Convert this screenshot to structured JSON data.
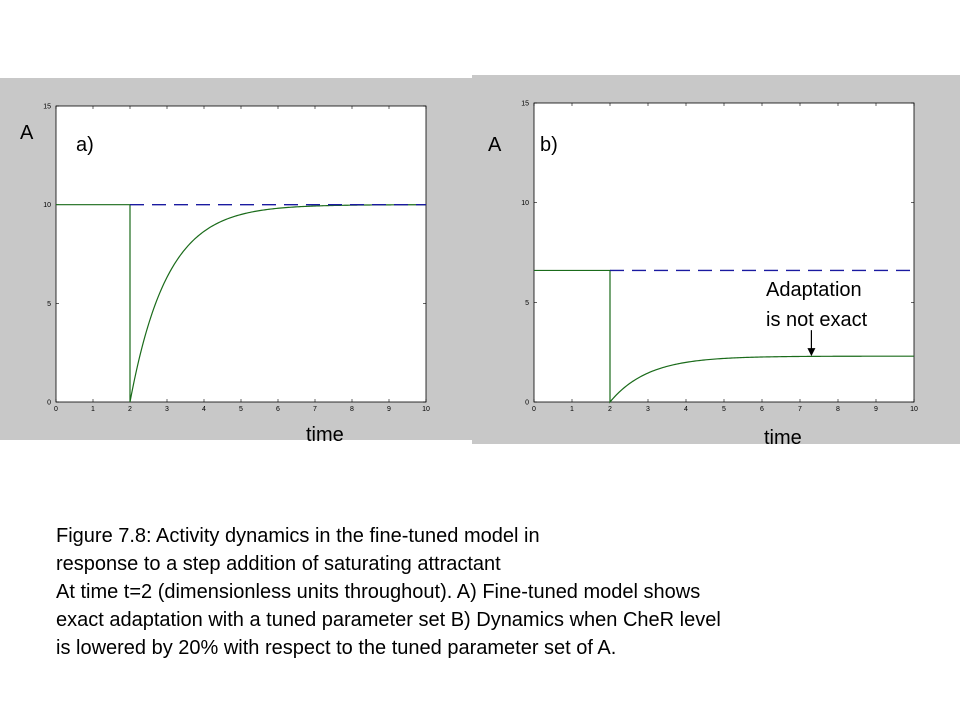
{
  "chart_data": [
    {
      "type": "line",
      "panel_label": "a)",
      "ylabel": "A",
      "xlabel": "time",
      "xlim": [
        0,
        10
      ],
      "ylim": [
        0,
        15
      ],
      "xticks": [
        0,
        1,
        2,
        3,
        4,
        5,
        6,
        7,
        8,
        9,
        10
      ],
      "yticks": [
        0,
        5,
        10,
        15
      ],
      "grid": false,
      "series": [
        {
          "style": "solid",
          "color": "#1a6b1a",
          "step_time": 2,
          "pre_level": 10,
          "min_level": 0,
          "steady_level": 10,
          "tau": 1.0
        },
        {
          "style": "dashed",
          "color": "#1a1aa0",
          "x_start": 2,
          "x_end": 10,
          "level": 10
        }
      ]
    },
    {
      "type": "line",
      "panel_label": "b)",
      "ylabel": "A",
      "xlabel": "time",
      "xlim": [
        0,
        10
      ],
      "ylim": [
        0,
        15
      ],
      "xticks": [
        0,
        1,
        2,
        3,
        4,
        5,
        6,
        7,
        8,
        9,
        10
      ],
      "yticks": [
        0,
        5,
        10,
        15
      ],
      "grid": false,
      "series": [
        {
          "style": "solid",
          "color": "#1a6b1a",
          "step_time": 2,
          "pre_level": 6.6,
          "min_level": 0,
          "steady_level": 2.3,
          "tau": 1.0
        },
        {
          "style": "dashed",
          "color": "#1a1aa0",
          "x_start": 2,
          "x_end": 10,
          "level": 6.6
        }
      ],
      "annotation": {
        "lines": [
          "Adaptation",
          "is not exact"
        ],
        "arrow_target": [
          7.3,
          2.3
        ]
      }
    }
  ],
  "caption": [
    "Figure 7.8: Activity dynamics in the fine-tuned model in",
    "response to a step addition of saturating attractant",
    "At time t=2 (dimensionless units throughout). A) Fine-tuned model shows",
    "exact adaptation with a tuned parameter set  B) Dynamics when CheR level",
    "is lowered by 20% with respect to the tuned parameter set of A."
  ]
}
